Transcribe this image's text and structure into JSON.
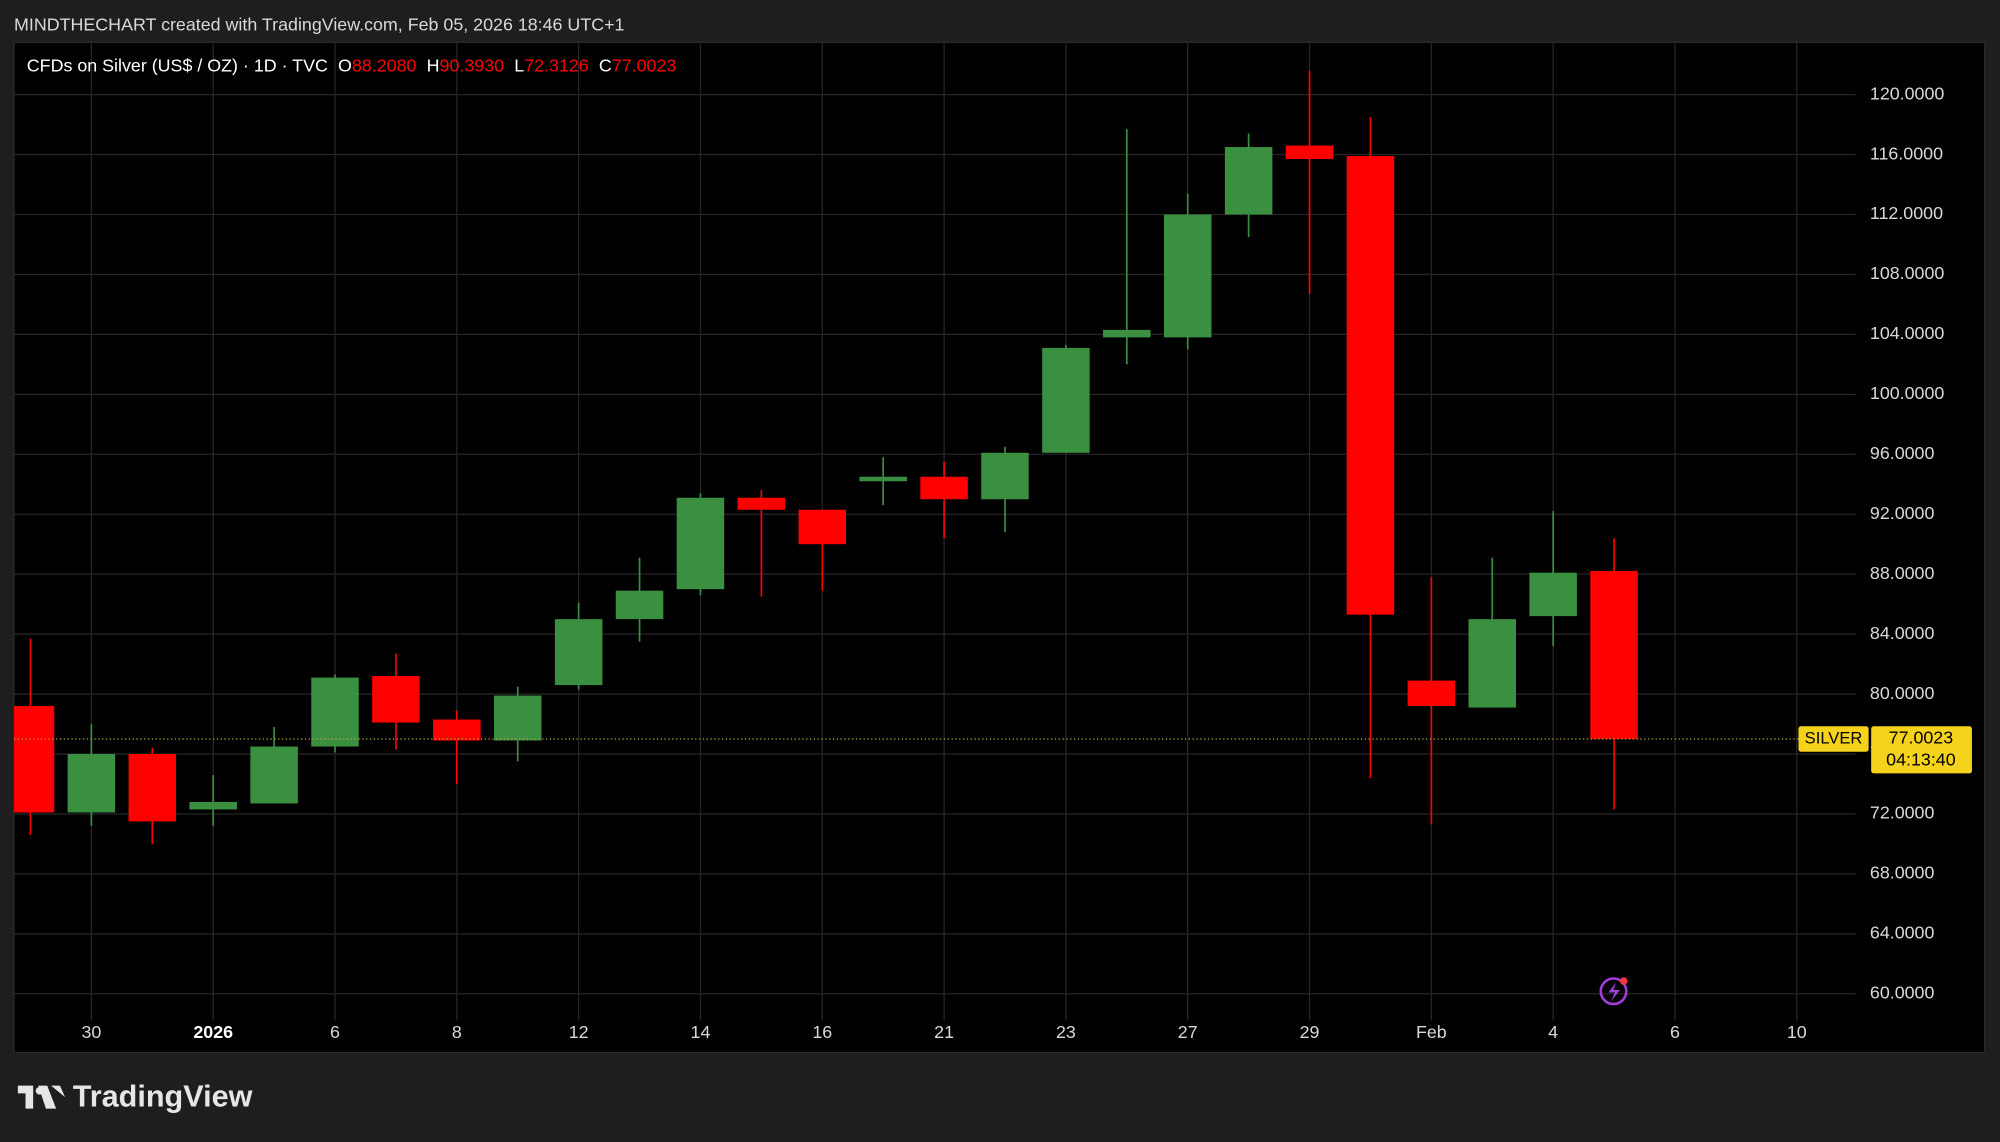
{
  "chart_data": {
    "type": "candlestick",
    "attribution": "MINDTHECHART created with TradingView.com, Feb 05, 2026 18:46 UTC+1",
    "title": "CFDs on Silver (US$ / OZ) · 1D · TVC",
    "ohlc_keys": [
      "O",
      "H",
      "L",
      "C"
    ],
    "ohlc_labels": [
      "88.2080",
      "90.3930",
      "72.3126",
      "77.0023"
    ],
    "open": [
      79.2,
      72.1,
      76.0,
      72.3,
      72.7,
      76.5,
      81.2,
      78.3,
      76.9,
      80.6,
      85.0,
      87.0,
      93.1,
      92.3,
      94.2,
      94.5,
      93.0,
      96.1,
      103.8,
      103.8,
      112.0,
      116.6,
      115.9,
      80.9,
      79.1,
      85.2,
      88.208
    ],
    "high": [
      83.7,
      78.0,
      76.4,
      74.6,
      77.8,
      81.3,
      82.7,
      78.9,
      80.5,
      86.1,
      89.1,
      93.4,
      93.6,
      92.3,
      95.8,
      95.5,
      96.5,
      103.3,
      117.7,
      113.4,
      117.4,
      121.6,
      118.5,
      87.8,
      89.1,
      92.2,
      90.393
    ],
    "low": [
      70.6,
      71.2,
      70.0,
      71.2,
      72.7,
      76.1,
      76.3,
      74.0,
      75.5,
      80.3,
      83.5,
      86.6,
      86.5,
      86.9,
      92.6,
      90.4,
      90.8,
      96.1,
      102.0,
      103.0,
      110.5,
      106.7,
      74.4,
      71.3,
      79.1,
      83.2,
      72.3126
    ],
    "close": [
      72.1,
      76.0,
      71.5,
      72.8,
      76.5,
      81.1,
      78.1,
      76.9,
      79.9,
      85.0,
      86.9,
      93.1,
      92.3,
      90.0,
      94.5,
      93.0,
      96.1,
      103.1,
      104.3,
      112.0,
      116.5,
      115.7,
      85.3,
      79.2,
      85.0,
      88.1,
      77.0023
    ],
    "up_color": "#3b8f41",
    "down_color": "#ff0000",
    "xlim": [
      -0.27,
      29.97
    ],
    "xticks": [
      {
        "value": 1,
        "label": "30"
      },
      {
        "value": 3,
        "label": "2026"
      },
      {
        "value": 5,
        "label": "6"
      },
      {
        "value": 7,
        "label": "8"
      },
      {
        "value": 9,
        "label": "12"
      },
      {
        "value": 11,
        "label": "14"
      },
      {
        "value": 13,
        "label": "16"
      },
      {
        "value": 15,
        "label": "21"
      },
      {
        "value": 17,
        "label": "23"
      },
      {
        "value": 19,
        "label": "27"
      },
      {
        "value": 21,
        "label": "29"
      },
      {
        "value": 23,
        "label": "Feb"
      },
      {
        "value": 25,
        "label": "4"
      },
      {
        "value": 27,
        "label": "6"
      },
      {
        "value": 29,
        "label": "10"
      }
    ],
    "ylim": [
      58.21,
      123.49
    ],
    "yticks": [
      {
        "value": 60,
        "label": "60.0000"
      },
      {
        "value": 64,
        "label": "64.0000"
      },
      {
        "value": 68,
        "label": "68.0000"
      },
      {
        "value": 72,
        "label": "72.0000"
      },
      {
        "value": 76,
        "label": "76.0000"
      },
      {
        "value": 80,
        "label": "80.0000"
      },
      {
        "value": 84,
        "label": "84.0000"
      },
      {
        "value": 88,
        "label": "88.0000"
      },
      {
        "value": 92,
        "label": "92.0000"
      },
      {
        "value": 96,
        "label": "96.0000"
      },
      {
        "value": 100,
        "label": "100.0000"
      },
      {
        "value": 104,
        "label": "104.0000"
      },
      {
        "value": 108,
        "label": "108.0000"
      },
      {
        "value": 112,
        "label": "112.0000"
      },
      {
        "value": 116,
        "label": "116.0000"
      },
      {
        "value": 120,
        "label": "120.0000"
      }
    ],
    "grid": true,
    "price_tag": {
      "symbol": "SILVER",
      "countdown": "04:13:40",
      "color": "#f5d31c"
    },
    "brand": "TradingView"
  }
}
